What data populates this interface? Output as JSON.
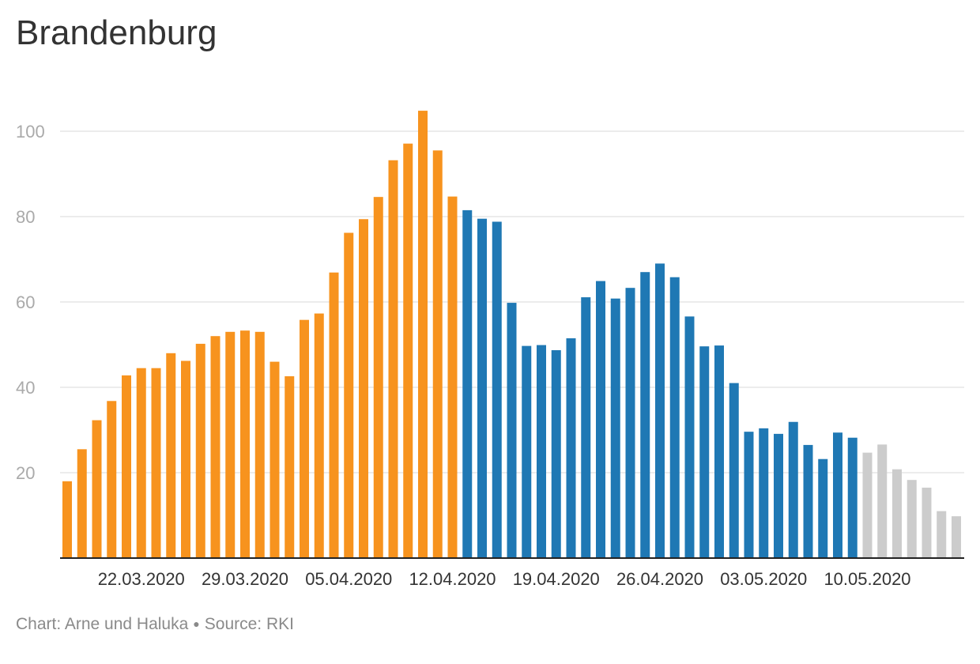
{
  "chart_data": {
    "type": "bar",
    "title": "Brandenburg",
    "xlabel": "",
    "ylabel": "",
    "ylim": [
      0,
      105
    ],
    "yticks": [
      20,
      40,
      60,
      80,
      100
    ],
    "grid": true,
    "legend": "none",
    "x_tick_labels": [
      "22.03.2020",
      "29.03.2020",
      "05.04.2020",
      "12.04.2020",
      "19.04.2020",
      "26.04.2020",
      "03.05.2020",
      "10.05.2020"
    ],
    "x_tick_label_bar_index": [
      5,
      12,
      19,
      26,
      33,
      40,
      47,
      54
    ],
    "series": [
      {
        "color": "#f7931e",
        "start_index": 0,
        "values": [
          18,
          25.5,
          32.3,
          36.8,
          42.8,
          44.5,
          44.5,
          48,
          46.2,
          50.2,
          52,
          53,
          53.3,
          53,
          46,
          42.6,
          55.8,
          57.3,
          66.9,
          76.2,
          79.4,
          84.6,
          93.2,
          97.1,
          104.8,
          95.5,
          84.7
        ]
      },
      {
        "color": "#1f78b4",
        "start_index": 27,
        "values": [
          81.5,
          79.5,
          78.8,
          59.8,
          49.7,
          49.9,
          48.7,
          51.5,
          61.1,
          64.9,
          60.8,
          63.3,
          67,
          69,
          65.8,
          56.6,
          49.6,
          49.8,
          41,
          29.6,
          30.4,
          29.1,
          31.9,
          26.5,
          23.2,
          29.4,
          28.2
        ]
      },
      {
        "color": "#cccccc",
        "start_index": 54,
        "values": [
          24.7,
          26.6,
          20.8,
          18.3,
          16.5,
          11,
          9.8
        ]
      }
    ]
  },
  "footer": {
    "credit": "Chart: Arne und Haluka",
    "separator": "●",
    "source": "Source: RKI"
  }
}
